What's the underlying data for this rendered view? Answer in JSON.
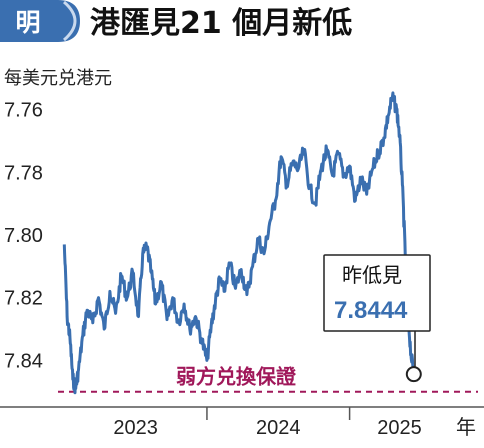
{
  "header": {
    "logo_char": "明",
    "title": "港匯見21 個月新低"
  },
  "chart_data": {
    "type": "line",
    "title": "港匯見21 個月新低",
    "ylabel": "每美元兑港元",
    "y_inverted": true,
    "ylim": [
      7.755,
      7.852
    ],
    "yticks": [
      "7.76",
      "7.78",
      "7.80",
      "7.82",
      "7.84"
    ],
    "ytick_values": [
      7.76,
      7.78,
      7.8,
      7.82,
      7.84
    ],
    "xticks": [
      "2023",
      "2024",
      "2025"
    ],
    "xticks_positions": [
      2023.5,
      2024.5,
      2025.35
    ],
    "x_unit": "年",
    "xlim": [
      2022.97,
      2025.9
    ],
    "series": [
      {
        "color": "#3a6fb0",
        "points": [
          [
            2023.0,
            7.803
          ],
          [
            2023.02,
            7.826
          ],
          [
            2023.04,
            7.833
          ],
          [
            2023.06,
            7.846
          ],
          [
            2023.08,
            7.849
          ],
          [
            2023.1,
            7.843
          ],
          [
            2023.13,
            7.832
          ],
          [
            2023.16,
            7.824
          ],
          [
            2023.2,
            7.828
          ],
          [
            2023.24,
            7.82
          ],
          [
            2023.28,
            7.83
          ],
          [
            2023.32,
            7.818
          ],
          [
            2023.36,
            7.825
          ],
          [
            2023.4,
            7.813
          ],
          [
            2023.44,
            7.82
          ],
          [
            2023.48,
            7.812
          ],
          [
            2023.52,
            7.826
          ],
          [
            2023.55,
            7.806
          ],
          [
            2023.58,
            7.804
          ],
          [
            2023.61,
            7.812
          ],
          [
            2023.64,
            7.822
          ],
          [
            2023.68,
            7.815
          ],
          [
            2023.72,
            7.827
          ],
          [
            2023.76,
            7.82
          ],
          [
            2023.8,
            7.828
          ],
          [
            2023.84,
            7.822
          ],
          [
            2023.88,
            7.83
          ],
          [
            2023.92,
            7.826
          ],
          [
            2023.96,
            7.833
          ],
          [
            2024.0,
            7.84
          ],
          [
            2024.03,
            7.829
          ],
          [
            2024.06,
            7.821
          ],
          [
            2024.09,
            7.814
          ],
          [
            2024.12,
            7.818
          ],
          [
            2024.16,
            7.809
          ],
          [
            2024.2,
            7.817
          ],
          [
            2024.24,
            7.811
          ],
          [
            2024.28,
            7.819
          ],
          [
            2024.32,
            7.81
          ],
          [
            2024.36,
            7.801
          ],
          [
            2024.4,
            7.806
          ],
          [
            2024.44,
            7.796
          ],
          [
            2024.48,
            7.789
          ],
          [
            2024.52,
            7.775
          ],
          [
            2024.56,
            7.784
          ],
          [
            2024.6,
            7.777
          ],
          [
            2024.64,
            7.779
          ],
          [
            2024.68,
            7.773
          ],
          [
            2024.72,
            7.785
          ],
          [
            2024.76,
            7.79
          ],
          [
            2024.8,
            7.779
          ],
          [
            2024.84,
            7.773
          ],
          [
            2024.88,
            7.781
          ],
          [
            2024.92,
            7.774
          ],
          [
            2024.96,
            7.781
          ],
          [
            2025.0,
            7.778
          ],
          [
            2025.04,
            7.789
          ],
          [
            2025.08,
            7.782
          ],
          [
            2025.12,
            7.787
          ],
          [
            2025.16,
            7.779
          ],
          [
            2025.2,
            7.774
          ],
          [
            2025.24,
            7.769
          ],
          [
            2025.27,
            7.762
          ],
          [
            2025.3,
            7.756
          ],
          [
            2025.33,
            7.76
          ],
          [
            2025.35,
            7.768
          ],
          [
            2025.37,
            7.784
          ],
          [
            2025.39,
            7.806
          ],
          [
            2025.41,
            7.826
          ],
          [
            2025.43,
            7.838
          ],
          [
            2025.45,
            7.8444
          ]
        ]
      }
    ],
    "annotations": {
      "low_label": "昨低見",
      "low_value": "7.8444",
      "peg_label": "弱方兑換保證",
      "peg_value": 7.85
    }
  },
  "colors": {
    "line": "#3a6fb0",
    "peg_line": "#a0185a",
    "logo_bg": "#3a6fb0",
    "axis": "#555555"
  }
}
